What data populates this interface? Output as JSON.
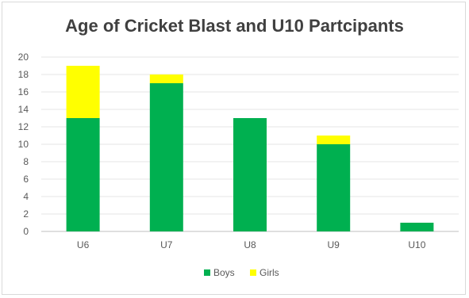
{
  "chart_data": {
    "type": "bar",
    "stacked": true,
    "title": "Age of Cricket Blast and U10 Partcipants",
    "categories": [
      "U6",
      "U7",
      "U8",
      "U9",
      "U10"
    ],
    "series": [
      {
        "name": "Boys",
        "values": [
          13,
          17,
          13,
          10,
          1
        ],
        "color": "#00b050"
      },
      {
        "name": "Girls",
        "values": [
          6,
          1,
          0,
          1,
          0
        ],
        "color": "#ffff00"
      }
    ],
    "ylim": [
      0,
      20
    ],
    "yticks": [
      0,
      2,
      4,
      6,
      8,
      10,
      12,
      14,
      16,
      18,
      20
    ],
    "grid": true,
    "legend": "bottom"
  }
}
